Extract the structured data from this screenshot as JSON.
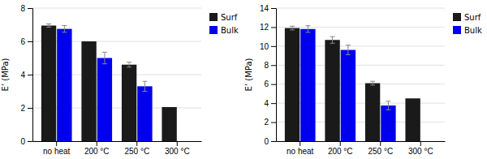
{
  "chart_data": [
    {
      "type": "bar",
      "categories": [
        "no heat",
        "200 °C",
        "250 °C",
        "300 °C"
      ],
      "series": [
        {
          "name": "Surf",
          "color": "#1a1a1a",
          "values": [
            6.95,
            6.0,
            4.6,
            2.05
          ],
          "errors": [
            0.1,
            null,
            0.15,
            null
          ]
        },
        {
          "name": "Bulk",
          "color": "#0000ee",
          "values": [
            6.75,
            5.0,
            3.3,
            null
          ],
          "errors": [
            0.2,
            0.35,
            0.3,
            null
          ]
        }
      ],
      "ylabel": "E’ (MPa)",
      "ylim": [
        0,
        8
      ],
      "yticks": [
        0,
        2,
        4,
        6,
        8
      ],
      "grid": true,
      "legend": "right"
    },
    {
      "type": "bar",
      "categories": [
        "no heat",
        "200 °C",
        "250 °C",
        "300 °C"
      ],
      "series": [
        {
          "name": "Surf",
          "color": "#1a1a1a",
          "values": [
            11.9,
            10.65,
            6.1,
            4.5
          ],
          "errors": [
            0.2,
            0.35,
            0.2,
            null
          ]
        },
        {
          "name": "Bulk",
          "color": "#0000ee",
          "values": [
            11.8,
            9.6,
            3.75,
            null
          ],
          "errors": [
            0.35,
            0.5,
            0.45,
            null
          ]
        }
      ],
      "ylabel": "E’ (MPa)",
      "ylim": [
        0,
        14
      ],
      "yticks": [
        0,
        2,
        4,
        6,
        8,
        10,
        12,
        14
      ],
      "grid": true,
      "legend": "right"
    }
  ]
}
